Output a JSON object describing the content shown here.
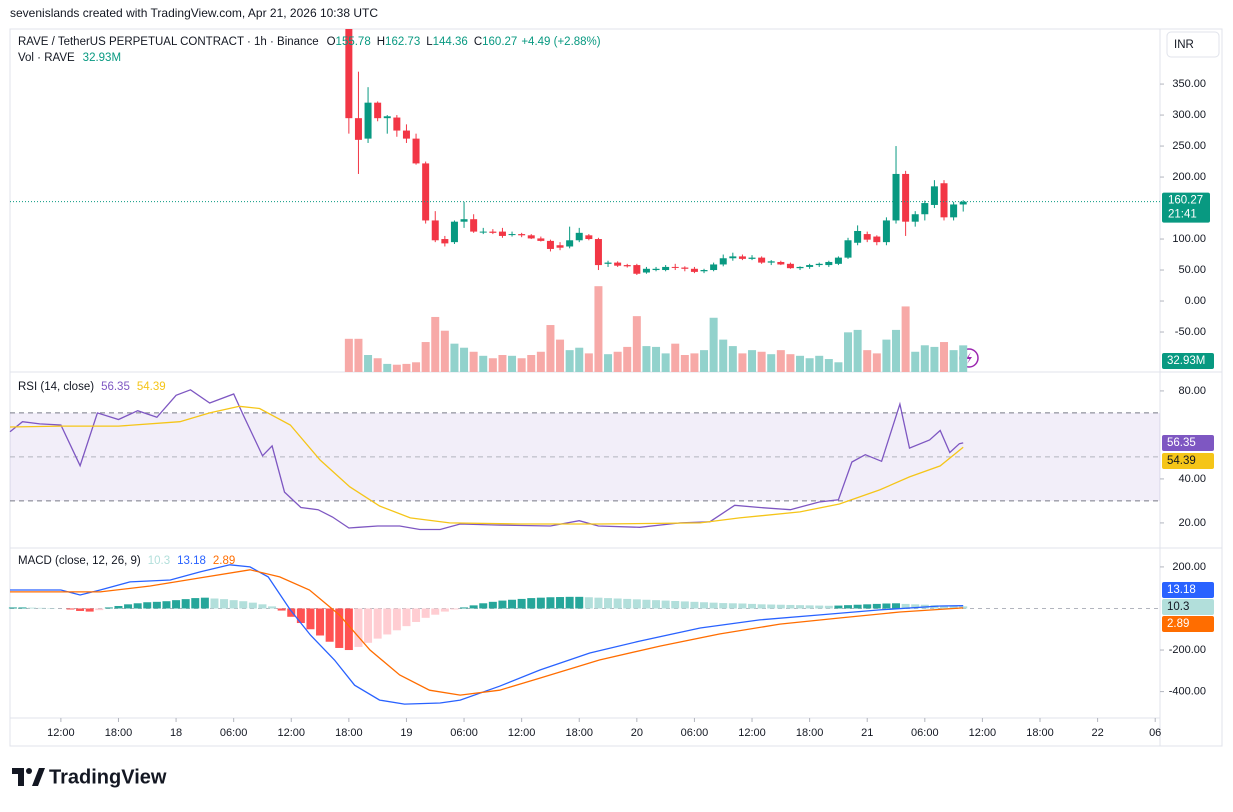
{
  "header": "sevenislands created with TradingView.com, Apr 21, 2026 10:38 UTC",
  "logo": "TradingView",
  "chart_data": [
    {
      "type": "candlestick",
      "title": "RAVE / TetherUS PERPETUAL CONTRACT · 1h · Binance",
      "ohlc_letters": [
        "O",
        "H",
        "L",
        "C"
      ],
      "change_label": "+4.49 (+2.88%)",
      "currency": "INR",
      "countdown": "21:41",
      "up_color": "#089981",
      "down_color": "#f23645",
      "xlim": [
        -5.3,
        114.5
      ],
      "xticks": [
        {
          "value": 0,
          "label": "12:00"
        },
        {
          "value": 6,
          "label": "18:00"
        },
        {
          "value": 12,
          "label": "18"
        },
        {
          "value": 18,
          "label": "06:00"
        },
        {
          "value": 24,
          "label": "12:00"
        },
        {
          "value": 30,
          "label": "18:00"
        },
        {
          "value": 36,
          "label": "19"
        },
        {
          "value": 42,
          "label": "06:00"
        },
        {
          "value": 48,
          "label": "12:00"
        },
        {
          "value": 54,
          "label": "18:00"
        },
        {
          "value": 60,
          "label": "20"
        },
        {
          "value": 66,
          "label": "06:00"
        },
        {
          "value": 72,
          "label": "12:00"
        },
        {
          "value": 78,
          "label": "18:00"
        },
        {
          "value": 84,
          "label": "21"
        },
        {
          "value": 90,
          "label": "06:00"
        },
        {
          "value": 96,
          "label": "12:00"
        },
        {
          "value": 102,
          "label": "18:00"
        },
        {
          "value": 108,
          "label": "22"
        },
        {
          "value": 114,
          "label": "06"
        }
      ],
      "ylim": [
        -114.5,
        434
      ],
      "yticks": [
        {
          "value": 350,
          "label": "350.00"
        },
        {
          "value": 300,
          "label": "300.00"
        },
        {
          "value": 250,
          "label": "250.00"
        },
        {
          "value": 200,
          "label": "200.00"
        },
        {
          "value": 100,
          "label": "100.00"
        },
        {
          "value": 50,
          "label": "50.00"
        },
        {
          "value": 0,
          "label": "0.00"
        },
        {
          "value": -50,
          "label": "-50.00"
        }
      ],
      "x": [
        30,
        31,
        32,
        33,
        34,
        35,
        36,
        37,
        38,
        39,
        40,
        41,
        42,
        43,
        44,
        45,
        46,
        47,
        48,
        49,
        50,
        51,
        52,
        53,
        54,
        55,
        56,
        57,
        58,
        59,
        60,
        61,
        62,
        63,
        64,
        65,
        66,
        67,
        68,
        69,
        70,
        71,
        72,
        73,
        74,
        75,
        76,
        77,
        78,
        79,
        80,
        81,
        82,
        83,
        84,
        85,
        86,
        87,
        88,
        89,
        90,
        91,
        92,
        93,
        94
      ],
      "open": [
        520,
        295,
        262,
        320,
        295,
        296,
        275,
        262,
        222,
        130,
        100,
        95,
        128,
        132,
        112,
        112,
        112,
        108,
        108,
        106,
        101,
        97,
        90,
        88,
        98,
        106,
        100,
        60,
        62,
        58,
        58,
        46,
        50,
        50,
        55,
        54,
        52,
        48,
        50,
        59,
        69,
        72,
        68,
        70,
        62,
        63,
        60,
        53,
        55,
        58,
        58,
        60,
        70,
        94,
        108,
        104,
        95,
        130,
        205,
        128,
        140,
        155,
        190,
        135,
        155.78
      ],
      "high": [
        560,
        370,
        345,
        322,
        300,
        300,
        285,
        270,
        225,
        145,
        105,
        130,
        160,
        140,
        118,
        116,
        118,
        112,
        110,
        108,
        104,
        99,
        95,
        120,
        118,
        108,
        102,
        65,
        64,
        60,
        60,
        55,
        55,
        58,
        60,
        56,
        55,
        52,
        62,
        75,
        78,
        75,
        74,
        72,
        66,
        65,
        62,
        56,
        60,
        62,
        65,
        72,
        102,
        122,
        112,
        106,
        135,
        250,
        210,
        145,
        162,
        195,
        195,
        160,
        162.73
      ],
      "low": [
        270,
        205,
        255,
        290,
        270,
        265,
        255,
        220,
        125,
        95,
        88,
        92,
        118,
        110,
        108,
        108,
        102,
        104,
        103,
        100,
        96,
        80,
        82,
        85,
        95,
        98,
        50,
        55,
        55,
        54,
        42,
        44,
        48,
        48,
        50,
        48,
        45,
        45,
        48,
        56,
        65,
        66,
        66,
        60,
        58,
        58,
        52,
        50,
        52,
        55,
        55,
        58,
        68,
        90,
        95,
        90,
        90,
        125,
        105,
        120,
        130,
        150,
        130,
        130,
        144.36
      ],
      "close": [
        295,
        260,
        320,
        295,
        298,
        275,
        262,
        222,
        130,
        98,
        93,
        128,
        132,
        112,
        112,
        110,
        105,
        108,
        106,
        101,
        97,
        84,
        86,
        98,
        110,
        100,
        58,
        62,
        57,
        56,
        44,
        52,
        52,
        55,
        54,
        52,
        47,
        50,
        59,
        69,
        72,
        68,
        70,
        62,
        64,
        59,
        53,
        55,
        58,
        60,
        63,
        70,
        98,
        113,
        99,
        95,
        130,
        205,
        128,
        140,
        158,
        185,
        135,
        155.78,
        160.27
      ],
      "volume": {
        "name": "Vol · RAVE",
        "value_label": "32.93M",
        "ylim": [
          0,
          420
        ],
        "up_color": "#92d2cc",
        "down_color": "#f7a9a7",
        "values": [
          41,
          41,
          21,
          17,
          10,
          9,
          10,
          12,
          37,
          68,
          51,
          35,
          30,
          25,
          20,
          17,
          21,
          20,
          17,
          21,
          25,
          58,
          40,
          27,
          30,
          23,
          106,
          22,
          25,
          31,
          69,
          32,
          31,
          23,
          35,
          21,
          23,
          27,
          67,
          40,
          32,
          23,
          27,
          25,
          22,
          27,
          22,
          20,
          17,
          20,
          16,
          12,
          49,
          52,
          27,
          23,
          40,
          52,
          81,
          25,
          33,
          31,
          37,
          27,
          32.93
        ]
      }
    },
    {
      "type": "line",
      "title": "RSI (14, close)",
      "ylim": [
        8.6,
        88.6
      ],
      "yticks": [
        {
          "value": 80,
          "label": "80.00"
        },
        {
          "value": 40,
          "label": "40.00"
        },
        {
          "value": 20,
          "label": "20.00"
        }
      ],
      "bands": [
        30,
        70
      ],
      "midline": 50,
      "band_color": "#7e57c2",
      "series": [
        {
          "color": "#7e57c2",
          "x": [
            -5.3,
            -4,
            -2.2,
            0,
            2,
            3.8,
            6,
            8,
            10,
            12,
            13.5,
            15.5,
            18,
            19,
            21,
            22,
            23.3,
            25,
            26.8,
            28.3,
            30,
            31,
            33,
            35.3,
            37.4,
            39.5,
            41.6,
            45.7,
            51,
            54,
            56,
            60.3,
            64.5,
            67.6,
            70.2,
            72.8,
            76,
            79,
            81,
            82.4,
            83.8,
            85.5,
            87.4,
            88.4,
            90.5,
            91.6,
            92.6,
            93.6,
            94
          ],
          "values": [
            61.4,
            66,
            65,
            64.5,
            46,
            70,
            67,
            71,
            68,
            78,
            80.5,
            74.5,
            78.6,
            69,
            50.5,
            55,
            34,
            27,
            26,
            22.7,
            17.7,
            18,
            18.6,
            18.6,
            17,
            17,
            19.5,
            19,
            18.6,
            21,
            18.6,
            18,
            20,
            20.5,
            28,
            27,
            26,
            29.5,
            30.5,
            47.7,
            51,
            48,
            74,
            54,
            57.7,
            62,
            52,
            56,
            56.35
          ]
        },
        {
          "color": "#f5c518",
          "x": [
            -5.3,
            0,
            6,
            12.4,
            15.5,
            18.6,
            20.7,
            23.9,
            27,
            30.1,
            33.2,
            36.4,
            40.5,
            47.8,
            56.1,
            66.6,
            70.7,
            77,
            81.1,
            85.3,
            88.4,
            91.6,
            94
          ],
          "values": [
            63.6,
            64,
            64,
            66,
            70,
            73,
            72,
            64.5,
            48.6,
            36.4,
            27.7,
            22.3,
            20,
            19.5,
            19.5,
            20,
            22.3,
            25,
            28.6,
            35,
            40.9,
            45.9,
            54.39
          ]
        }
      ]
    },
    {
      "type": "macd",
      "title": "MACD (close, 12, 26, 9)",
      "ylim": [
        -527,
        291
      ],
      "yticks": [
        {
          "value": 200,
          "label": "200.00"
        },
        {
          "value": -200,
          "label": "-200.00"
        },
        {
          "value": -400,
          "label": "-400.00"
        }
      ],
      "histogram": {
        "colors": [
          "#26a69a",
          "#b2dfdb",
          "#ff5252",
          "#ffcdd2"
        ],
        "x": [
          -5,
          -4,
          -3,
          -2,
          -1,
          0,
          1,
          2,
          3,
          4,
          5,
          6,
          7,
          8,
          9,
          10,
          11,
          12,
          13,
          14,
          15,
          16,
          17,
          18,
          19,
          20,
          21,
          22,
          23,
          24,
          25,
          26,
          27,
          28,
          29,
          30,
          31,
          32,
          33,
          34,
          35,
          36,
          37,
          38,
          39,
          40,
          41,
          42,
          43,
          44,
          45,
          46,
          47,
          48,
          49,
          50,
          51,
          52,
          53,
          54,
          55,
          56,
          57,
          58,
          59,
          60,
          61,
          62,
          63,
          64,
          65,
          66,
          67,
          68,
          69,
          70,
          71,
          72,
          73,
          74,
          75,
          76,
          77,
          78,
          79,
          80,
          81,
          82,
          83,
          84,
          85,
          86,
          87,
          88,
          89,
          90,
          91,
          92,
          93,
          94
        ],
        "values": [
          5,
          5,
          4,
          3,
          2,
          0,
          -5,
          -12,
          -15,
          -8,
          5,
          12,
          20,
          25,
          30,
          32,
          35,
          40,
          45,
          50,
          52,
          48,
          45,
          40,
          35,
          28,
          20,
          10,
          -10,
          -40,
          -70,
          -100,
          -130,
          -160,
          -190,
          -200,
          -185,
          -165,
          -145,
          -125,
          -105,
          -85,
          -65,
          -45,
          -30,
          -15,
          -5,
          5,
          15,
          25,
          32,
          38,
          42,
          46,
          50,
          52,
          54,
          55,
          56,
          56,
          54,
          52,
          50,
          48,
          46,
          44,
          42,
          40,
          38,
          36,
          34,
          32,
          30,
          28,
          26,
          25,
          24,
          22,
          20,
          19,
          18,
          17,
          16,
          15,
          14,
          13,
          14,
          16,
          18,
          20,
          22,
          24,
          25,
          22,
          20,
          18,
          16,
          14,
          12,
          10.3
        ]
      },
      "series": [
        {
          "color": "#2962ff",
          "x": [
            -5.3,
            0,
            2,
            4.1,
            7.2,
            11.4,
            14.5,
            17.6,
            19.7,
            21.6,
            23.9,
            26,
            28.5,
            30.6,
            33.2,
            35.8,
            39.5,
            41.6,
            45.7,
            49.9,
            55.1,
            60.3,
            66.6,
            72.8,
            79.1,
            85.3,
            91.6,
            94
          ],
          "values": [
            89,
            89,
            65,
            89,
            128,
            137,
            176,
            210,
            200,
            152,
            -7,
            -128,
            -248,
            -369,
            -441,
            -460,
            -455,
            -441,
            -374,
            -296,
            -214,
            -157,
            -94,
            -55,
            -31,
            -7,
            12,
            13.18
          ]
        },
        {
          "color": "#ff6d00",
          "x": [
            -5.3,
            4.1,
            9.3,
            14.5,
            19.7,
            22.8,
            25.9,
            29,
            32.2,
            35.3,
            38.4,
            41.6,
            45.7,
            49.9,
            56.1,
            62.4,
            68.6,
            74.9,
            81.1,
            87.4,
            94
          ],
          "values": [
            80,
            80,
            108,
            147,
            186,
            152,
            89,
            -31,
            -200,
            -320,
            -393,
            -417,
            -393,
            -335,
            -248,
            -181,
            -123,
            -75,
            -46,
            -17,
            2.89
          ]
        }
      ]
    }
  ]
}
